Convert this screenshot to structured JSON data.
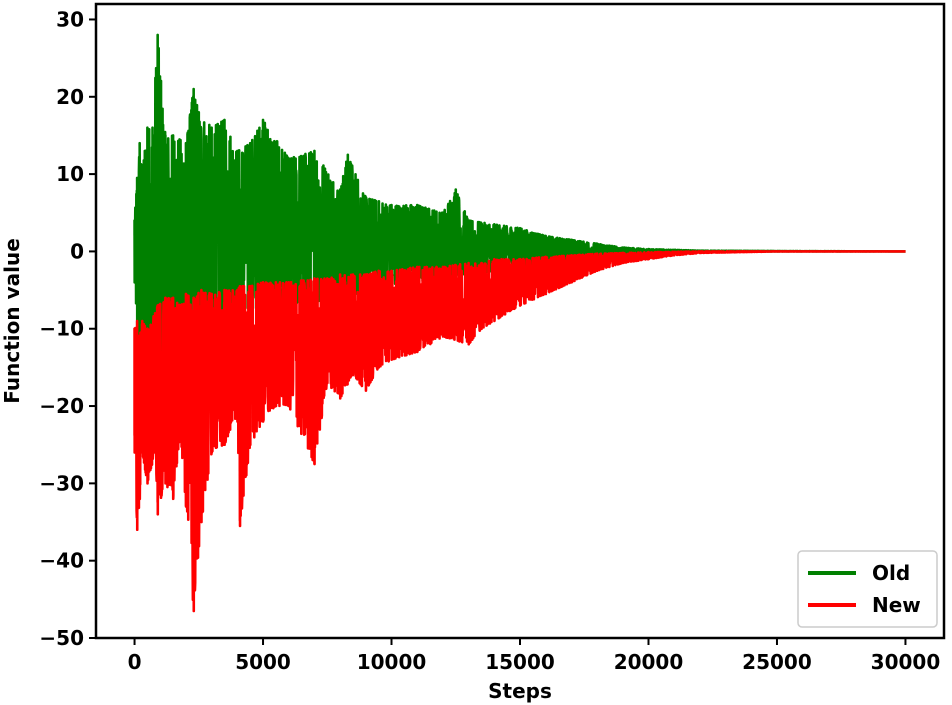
{
  "chart_data": {
    "type": "line",
    "title": "",
    "xlabel": "Steps",
    "ylabel": "Function value",
    "xlim": [
      -1500,
      31500
    ],
    "ylim": [
      -50,
      32
    ],
    "x_ticks": [
      0,
      5000,
      10000,
      15000,
      20000,
      25000,
      30000
    ],
    "x_tick_labels": [
      "0",
      "5000",
      "10000",
      "15000",
      "20000",
      "25000",
      "30000"
    ],
    "y_ticks": [
      -50,
      -40,
      -30,
      -20,
      -10,
      0,
      10,
      20,
      30
    ],
    "y_tick_labels": [
      "−50",
      "−40",
      "−30",
      "−20",
      "−10",
      "0",
      "10",
      "20",
      "30"
    ],
    "grid": false,
    "legend_position": "bottom-right",
    "series": [
      {
        "name": "Old",
        "color": "#008000",
        "x": [
          0,
          100,
          200,
          300,
          400,
          500,
          700,
          900,
          1200,
          1500,
          2000,
          2300,
          2500,
          3000,
          3500,
          4000,
          4500,
          5000,
          6000,
          7000,
          8000,
          8300,
          9000,
          10000,
          11000,
          12000,
          12500,
          13000,
          14000,
          15000,
          16000,
          17000,
          18000,
          19000,
          20000,
          21000,
          22000,
          25000,
          30000
        ],
        "upper": [
          4,
          9.5,
          14,
          10,
          13,
          16,
          16,
          28,
          15,
          15,
          14,
          21,
          18,
          16,
          17,
          13,
          14,
          17,
          12,
          13,
          8,
          12.5,
          7,
          6,
          6,
          5,
          8,
          4,
          3.5,
          3,
          2,
          1.5,
          1,
          0.5,
          0.3,
          0.2,
          0.1,
          0.05,
          0
        ],
        "lower": [
          -4,
          -10,
          -15,
          -12,
          -16,
          -17,
          -17,
          -15,
          -14,
          -13,
          -12,
          -11,
          -10,
          -9,
          -9,
          -8,
          -8,
          -7.5,
          -7,
          -6.5,
          -6,
          -6,
          -5,
          -4.5,
          -4,
          -3.5,
          -3,
          -3,
          -2.5,
          -2,
          -1.5,
          -1,
          -0.7,
          -0.4,
          -0.2,
          -0.1,
          -0.05,
          0,
          0
        ]
      },
      {
        "name": "New",
        "color": "#ff0000",
        "x": [
          0,
          100,
          200,
          300,
          500,
          800,
          900,
          1200,
          1500,
          1800,
          2000,
          2300,
          2600,
          3000,
          3500,
          4000,
          4100,
          4500,
          5000,
          5500,
          6000,
          7000,
          7500,
          8000,
          8500,
          9000,
          9500,
          10000,
          11000,
          12000,
          13000,
          13500,
          14000,
          15000,
          16000,
          17000,
          18000,
          19000,
          20000,
          21000,
          22000,
          25000,
          30000
        ],
        "upper": [
          -10,
          -9,
          -11,
          -9,
          -10,
          -8,
          -7,
          -6,
          -6,
          -7,
          -5.5,
          -6,
          -5,
          -5.5,
          -5,
          -5,
          -4.5,
          -4.5,
          -4,
          -4,
          -4,
          -3.5,
          -3.5,
          -3,
          -3,
          -3,
          -2.5,
          -2.5,
          -2,
          -2,
          -1.5,
          -1.5,
          -1,
          -1,
          -0.7,
          -0.5,
          -0.3,
          -0.2,
          -0.1,
          -0.05,
          0,
          0,
          0
        ],
        "lower": [
          -26,
          -36,
          -32,
          -26,
          -30,
          -26,
          -34,
          -30,
          -32,
          -24,
          -33,
          -46.5,
          -35,
          -26,
          -25,
          -22,
          -35.5,
          -25,
          -22,
          -20,
          -20,
          -27.5,
          -17,
          -19,
          -16,
          -18,
          -15,
          -14,
          -13,
          -11,
          -12,
          -10,
          -9,
          -7,
          -5.5,
          -4,
          -2.5,
          -1.5,
          -1,
          -0.5,
          -0.2,
          0,
          0
        ]
      }
    ]
  }
}
